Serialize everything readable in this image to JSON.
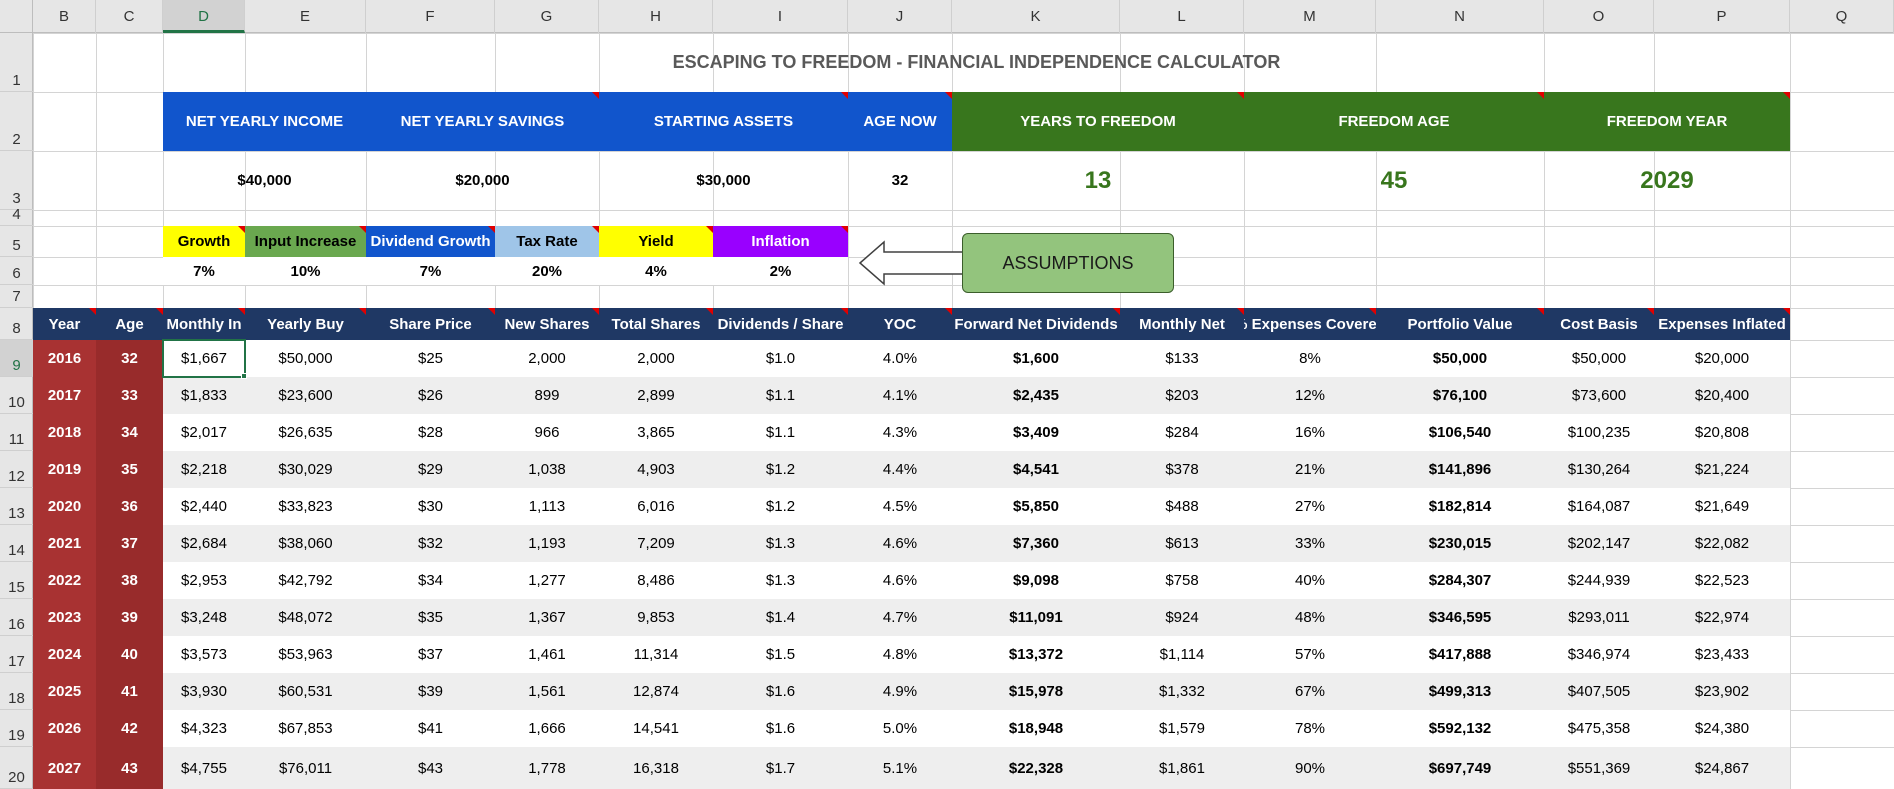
{
  "columns": [
    "B",
    "C",
    "D",
    "E",
    "F",
    "G",
    "H",
    "I",
    "J",
    "K",
    "L",
    "M",
    "N",
    "O",
    "P",
    "Q"
  ],
  "selected_column": "D",
  "rows": [
    "1",
    "2",
    "3",
    "4",
    "5",
    "6",
    "7",
    "8",
    "9",
    "10",
    "11",
    "12",
    "13",
    "14",
    "15",
    "16",
    "17",
    "18",
    "19",
    "20"
  ],
  "selected_row": "9",
  "title": "ESCAPING TO FREEDOM - FINANCIAL INDEPENDENCE CALCULATOR",
  "inputs": {
    "net_income_label": "NET YEARLY INCOME",
    "net_income_value": "$40,000",
    "net_savings_label": "NET YEARLY SAVINGS",
    "net_savings_value": "$20,000",
    "starting_assets_label": "STARTING ASSETS",
    "starting_assets_value": "$30,000",
    "age_now_label": "AGE NOW",
    "age_now_value": "32"
  },
  "results": {
    "years_label": "YEARS TO FREEDOM",
    "years_value": "13",
    "age_label": "FREEDOM AGE",
    "age_value": "45",
    "year_label": "FREEDOM YEAR",
    "year_value": "2029"
  },
  "assumptions": [
    {
      "label": "Growth",
      "value": "7%",
      "bg": "#ffff00",
      "fg": "#000000"
    },
    {
      "label": "Input Increase",
      "value": "10%",
      "bg": "#6aa84f",
      "fg": "#000000"
    },
    {
      "label": "Dividend Growth",
      "value": "7%",
      "bg": "#1155cc",
      "fg": "#ffffff"
    },
    {
      "label": "Tax Rate",
      "value": "20%",
      "bg": "#9fc5e8",
      "fg": "#000000"
    },
    {
      "label": "Yield",
      "value": "4%",
      "bg": "#ffff00",
      "fg": "#000000"
    },
    {
      "label": "Inflation",
      "value": "2%",
      "bg": "#9900ff",
      "fg": "#ffffff"
    }
  ],
  "assumptions_button": "ASSUMPTIONS",
  "table_headers": [
    "Year",
    "Age",
    "Monthly In",
    "Yearly Buy",
    "Share Price",
    "New Shares",
    "Total Shares",
    "Dividends / Share",
    "YOC",
    "Forward Net Dividends",
    "Monthly Net",
    "% Expenses Covered",
    "Portfolio Value",
    "Cost Basis",
    "Expenses Inflated"
  ],
  "table_rows": [
    [
      "2016",
      "32",
      "$1,667",
      "$50,000",
      "$25",
      "2,000",
      "2,000",
      "$1.0",
      "4.0%",
      "$1,600",
      "$133",
      "8%",
      "$50,000",
      "$50,000",
      "$20,000"
    ],
    [
      "2017",
      "33",
      "$1,833",
      "$23,600",
      "$26",
      "899",
      "2,899",
      "$1.1",
      "4.1%",
      "$2,435",
      "$203",
      "12%",
      "$76,100",
      "$73,600",
      "$20,400"
    ],
    [
      "2018",
      "34",
      "$2,017",
      "$26,635",
      "$28",
      "966",
      "3,865",
      "$1.1",
      "4.3%",
      "$3,409",
      "$284",
      "16%",
      "$106,540",
      "$100,235",
      "$20,808"
    ],
    [
      "2019",
      "35",
      "$2,218",
      "$30,029",
      "$29",
      "1,038",
      "4,903",
      "$1.2",
      "4.4%",
      "$4,541",
      "$378",
      "21%",
      "$141,896",
      "$130,264",
      "$21,224"
    ],
    [
      "2020",
      "36",
      "$2,440",
      "$33,823",
      "$30",
      "1,113",
      "6,016",
      "$1.2",
      "4.5%",
      "$5,850",
      "$488",
      "27%",
      "$182,814",
      "$164,087",
      "$21,649"
    ],
    [
      "2021",
      "37",
      "$2,684",
      "$38,060",
      "$32",
      "1,193",
      "7,209",
      "$1.3",
      "4.6%",
      "$7,360",
      "$613",
      "33%",
      "$230,015",
      "$202,147",
      "$22,082"
    ],
    [
      "2022",
      "38",
      "$2,953",
      "$42,792",
      "$34",
      "1,277",
      "8,486",
      "$1.3",
      "4.6%",
      "$9,098",
      "$758",
      "40%",
      "$284,307",
      "$244,939",
      "$22,523"
    ],
    [
      "2023",
      "39",
      "$3,248",
      "$48,072",
      "$35",
      "1,367",
      "9,853",
      "$1.4",
      "4.7%",
      "$11,091",
      "$924",
      "48%",
      "$346,595",
      "$293,011",
      "$22,974"
    ],
    [
      "2024",
      "40",
      "$3,573",
      "$53,963",
      "$37",
      "1,461",
      "11,314",
      "$1.5",
      "4.8%",
      "$13,372",
      "$1,114",
      "57%",
      "$417,888",
      "$346,974",
      "$23,433"
    ],
    [
      "2025",
      "41",
      "$3,930",
      "$60,531",
      "$39",
      "1,561",
      "12,874",
      "$1.6",
      "4.9%",
      "$15,978",
      "$1,332",
      "67%",
      "$499,313",
      "$407,505",
      "$23,902"
    ],
    [
      "2026",
      "42",
      "$4,323",
      "$67,853",
      "$41",
      "1,666",
      "14,541",
      "$1.6",
      "5.0%",
      "$18,948",
      "$1,579",
      "78%",
      "$592,132",
      "$475,358",
      "$24,380"
    ],
    [
      "2027",
      "43",
      "$4,755",
      "$76,011",
      "$43",
      "1,778",
      "16,318",
      "$1.7",
      "5.1%",
      "$22,328",
      "$1,861",
      "90%",
      "$697,749",
      "$551,369",
      "$24,867"
    ]
  ],
  "colors": {
    "header_blue": "#1155cc",
    "header_green": "#38761d",
    "table_header": "#1f3864",
    "year_red": "#a83232",
    "selection_green": "#217346"
  }
}
